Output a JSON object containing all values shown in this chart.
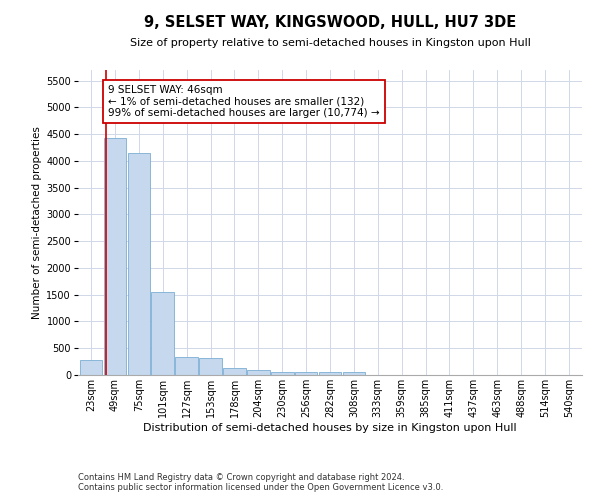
{
  "title": "9, SELSET WAY, KINGSWOOD, HULL, HU7 3DE",
  "subtitle": "Size of property relative to semi-detached houses in Kingston upon Hull",
  "xlabel": "Distribution of semi-detached houses by size in Kingston upon Hull",
  "ylabel": "Number of semi-detached properties",
  "footnote1": "Contains HM Land Registry data © Crown copyright and database right 2024.",
  "footnote2": "Contains public sector information licensed under the Open Government Licence v3.0.",
  "annotation_line1": "9 SELSET WAY: 46sqm",
  "annotation_line2": "← 1% of semi-detached houses are smaller (132)",
  "annotation_line3": "99% of semi-detached houses are larger (10,774) →",
  "bar_color": "#c5d8ed",
  "bar_edge_color": "#7bafd4",
  "vline_color": "#cc0000",
  "annotation_box_edge": "#cc0000",
  "annotation_box_face": "#ffffff",
  "categories": [
    "23sqm",
    "49sqm",
    "75sqm",
    "101sqm",
    "127sqm",
    "153sqm",
    "178sqm",
    "204sqm",
    "230sqm",
    "256sqm",
    "282sqm",
    "308sqm",
    "333sqm",
    "359sqm",
    "385sqm",
    "411sqm",
    "437sqm",
    "463sqm",
    "488sqm",
    "514sqm",
    "540sqm"
  ],
  "values": [
    285,
    4420,
    4150,
    1560,
    330,
    320,
    130,
    85,
    60,
    60,
    50,
    55,
    0,
    0,
    0,
    0,
    0,
    0,
    0,
    0,
    0
  ],
  "ylim": [
    0,
    5700
  ],
  "yticks": [
    0,
    500,
    1000,
    1500,
    2000,
    2500,
    3000,
    3500,
    4000,
    4500,
    5000,
    5500
  ],
  "grid_color": "#d0d8e8",
  "bg_color": "#ffffff",
  "title_fontsize": 10.5,
  "subtitle_fontsize": 8,
  "ylabel_fontsize": 7.5,
  "xlabel_fontsize": 8,
  "tick_fontsize": 7,
  "annot_fontsize": 7.5,
  "footnote_fontsize": 6
}
